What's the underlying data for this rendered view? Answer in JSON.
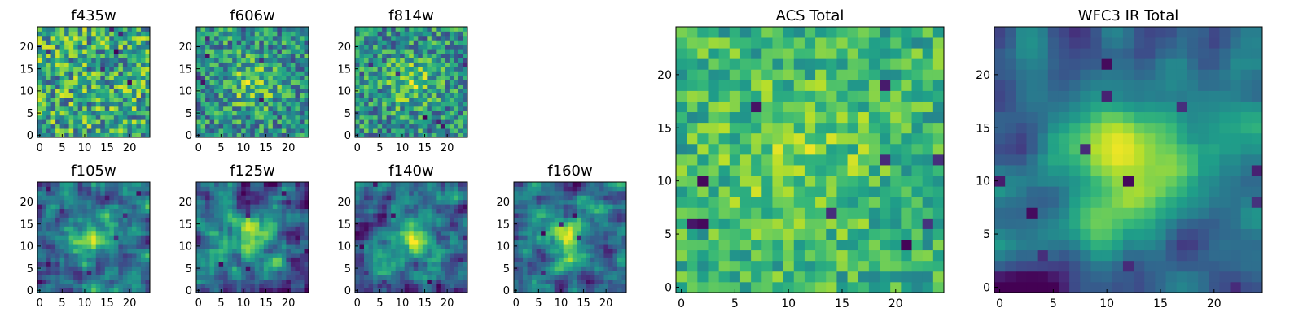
{
  "chart_data": [
    {
      "type": "heatmap",
      "title": "f435w",
      "size": 25,
      "xticks": [
        0,
        5,
        10,
        15,
        20
      ],
      "yticks": [
        0,
        5,
        10,
        15,
        20
      ],
      "xlim": [
        0,
        24
      ],
      "ylim": [
        0,
        24
      ],
      "colormap": "viridis",
      "pattern": "noise",
      "seed": 11,
      "grid": false
    },
    {
      "type": "heatmap",
      "title": "f606w",
      "size": 25,
      "xticks": [
        0,
        5,
        10,
        15,
        20
      ],
      "yticks": [
        0,
        5,
        10,
        15,
        20
      ],
      "xlim": [
        0,
        24
      ],
      "ylim": [
        0,
        24
      ],
      "colormap": "viridis",
      "pattern": "noise-center",
      "seed": 23,
      "grid": false
    },
    {
      "type": "heatmap",
      "title": "f814w",
      "size": 25,
      "xticks": [
        0,
        5,
        10,
        15,
        20
      ],
      "yticks": [
        0,
        5,
        10,
        15,
        20
      ],
      "xlim": [
        0,
        24
      ],
      "ylim": [
        0,
        24
      ],
      "colormap": "viridis",
      "pattern": "noise-center",
      "seed": 37,
      "grid": false
    },
    {
      "type": "heatmap",
      "title": "f105w",
      "size": 25,
      "xticks": [
        0,
        5,
        10,
        15,
        20
      ],
      "yticks": [
        0,
        5,
        10,
        15,
        20
      ],
      "xlim": [
        0,
        24
      ],
      "ylim": [
        0,
        24
      ],
      "colormap": "viridis",
      "pattern": "smooth",
      "seed": 41,
      "grid": false
    },
    {
      "type": "heatmap",
      "title": "f125w",
      "size": 25,
      "xticks": [
        0,
        5,
        10,
        15,
        20
      ],
      "yticks": [
        0,
        5,
        10,
        15,
        20
      ],
      "xlim": [
        0,
        24
      ],
      "ylim": [
        0,
        24
      ],
      "colormap": "viridis",
      "pattern": "smooth",
      "seed": 53,
      "grid": false
    },
    {
      "type": "heatmap",
      "title": "f140w",
      "size": 25,
      "xticks": [
        0,
        5,
        10,
        15,
        20
      ],
      "yticks": [
        0,
        5,
        10,
        15,
        20
      ],
      "xlim": [
        0,
        24
      ],
      "ylim": [
        0,
        24
      ],
      "colormap": "viridis",
      "pattern": "smooth",
      "seed": 67,
      "grid": false
    },
    {
      "type": "heatmap",
      "title": "f160w",
      "size": 25,
      "xticks": [
        0,
        5,
        10,
        15,
        20
      ],
      "yticks": [
        0,
        5,
        10,
        15,
        20
      ],
      "xlim": [
        0,
        24
      ],
      "ylim": [
        0,
        24
      ],
      "colormap": "viridis",
      "pattern": "smooth",
      "seed": 71,
      "grid": false
    },
    {
      "type": "heatmap",
      "title": "ACS Total",
      "size": 25,
      "xticks": [
        0,
        5,
        10,
        15,
        20
      ],
      "yticks": [
        0,
        5,
        10,
        15,
        20
      ],
      "xlim": [
        0,
        24
      ],
      "ylim": [
        0,
        24
      ],
      "colormap": "viridis",
      "pattern": "acs",
      "seed": 83,
      "grid": false
    },
    {
      "type": "heatmap",
      "title": "WFC3 IR Total",
      "size": 25,
      "xticks": [
        0,
        5,
        10,
        15,
        20
      ],
      "yticks": [
        0,
        5,
        10,
        15,
        20
      ],
      "xlim": [
        0,
        24
      ],
      "ylim": [
        0,
        24
      ],
      "colormap": "viridis",
      "pattern": "ir",
      "seed": 97,
      "grid": false
    }
  ]
}
